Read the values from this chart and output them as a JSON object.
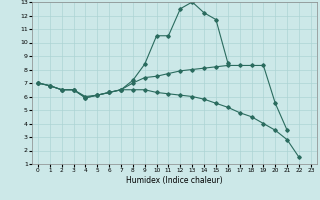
{
  "xlabel": "Humidex (Indice chaleur)",
  "xlim": [
    -0.5,
    23.5
  ],
  "ylim": [
    1,
    13
  ],
  "xticks": [
    0,
    1,
    2,
    3,
    4,
    5,
    6,
    7,
    8,
    9,
    10,
    11,
    12,
    13,
    14,
    15,
    16,
    17,
    18,
    19,
    20,
    21,
    22,
    23
  ],
  "yticks": [
    1,
    2,
    3,
    4,
    5,
    6,
    7,
    8,
    9,
    10,
    11,
    12,
    13
  ],
  "background_color": "#cce8e8",
  "grid_color": "#add4d4",
  "line_color": "#2a6b5e",
  "line_width": 0.8,
  "marker": "D",
  "marker_size": 1.8,
  "series": [
    {
      "x": [
        0,
        1,
        2,
        3,
        4,
        5,
        6,
        7,
        8,
        9,
        10,
        11,
        12,
        13,
        14,
        15,
        16,
        17,
        18,
        19,
        20,
        21,
        22,
        23
      ],
      "y": [
        7.0,
        6.8,
        6.5,
        6.5,
        5.9,
        6.1,
        6.3,
        6.5,
        7.2,
        8.4,
        10.5,
        10.5,
        12.5,
        13.0,
        12.2,
        11.7,
        8.5,
        null,
        null,
        null,
        null,
        null,
        null,
        null
      ]
    },
    {
      "x": [
        0,
        1,
        2,
        3,
        4,
        5,
        6,
        7,
        8,
        9,
        10,
        11,
        12,
        13,
        14,
        15,
        16,
        17,
        18,
        19,
        20,
        21,
        22,
        23
      ],
      "y": [
        7.0,
        6.8,
        6.5,
        6.5,
        5.9,
        6.1,
        6.3,
        6.5,
        7.0,
        7.4,
        7.5,
        7.7,
        7.9,
        8.0,
        8.1,
        8.2,
        8.3,
        8.3,
        8.3,
        8.3,
        5.5,
        3.5,
        null,
        null
      ]
    },
    {
      "x": [
        0,
        1,
        2,
        3,
        4,
        5,
        6,
        7,
        8,
        9,
        10,
        11,
        12,
        13,
        14,
        15,
        16,
        17,
        18,
        19,
        20,
        21,
        22,
        23
      ],
      "y": [
        7.0,
        6.8,
        6.5,
        6.5,
        6.0,
        6.1,
        6.3,
        6.5,
        6.5,
        6.5,
        6.3,
        6.2,
        6.1,
        6.0,
        5.8,
        5.5,
        5.2,
        4.8,
        4.5,
        4.0,
        3.5,
        2.8,
        1.5,
        null
      ]
    }
  ]
}
